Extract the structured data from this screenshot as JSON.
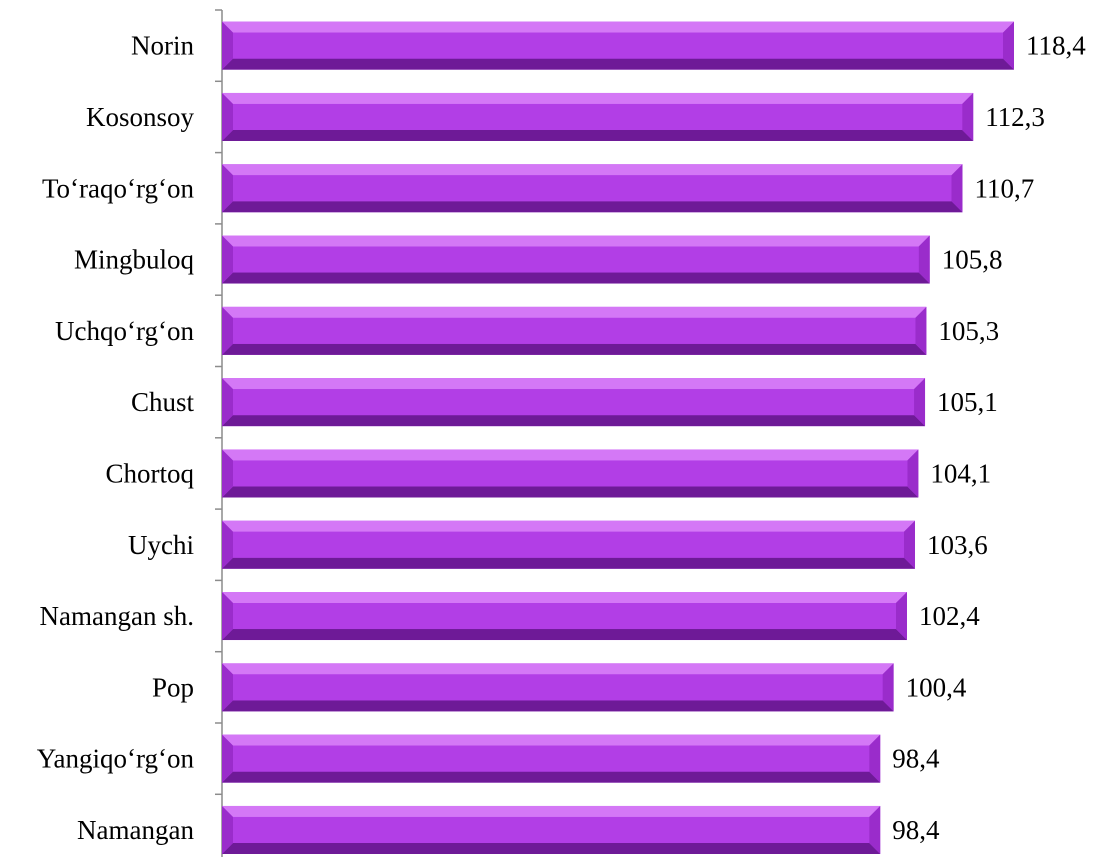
{
  "chart_data": {
    "type": "bar",
    "orientation": "horizontal",
    "title": "",
    "xlabel": "",
    "ylabel": "",
    "categories": [
      "Norin",
      "Kosonsoy",
      "To‘raqo‘rg‘on",
      "Mingbuloq",
      "Uchqo‘rg‘on",
      "Chust",
      "Chortoq",
      "Uychi",
      "Namangan sh.",
      "Pop",
      "Yangiqo‘rg‘on",
      "Namangan"
    ],
    "values": [
      118.4,
      112.3,
      110.7,
      105.8,
      105.3,
      105.1,
      104.1,
      103.6,
      102.4,
      100.4,
      98.4,
      98.4
    ],
    "value_labels": [
      "118,4",
      "112,3",
      "110,7",
      "105,8",
      "105,3",
      "105,1",
      "104,1",
      "103,6",
      "102,4",
      "100,4",
      "98,4",
      "98,4"
    ],
    "xlim": [
      0,
      118.4
    ],
    "grid": false,
    "legend": "none",
    "colors": {
      "bar_face": "#b23ee6",
      "bar_light": "#d478f6",
      "bar_dark": "#6e1a97",
      "bar_mid": "#9a2ccb",
      "axis": "#8c8c8c"
    }
  }
}
